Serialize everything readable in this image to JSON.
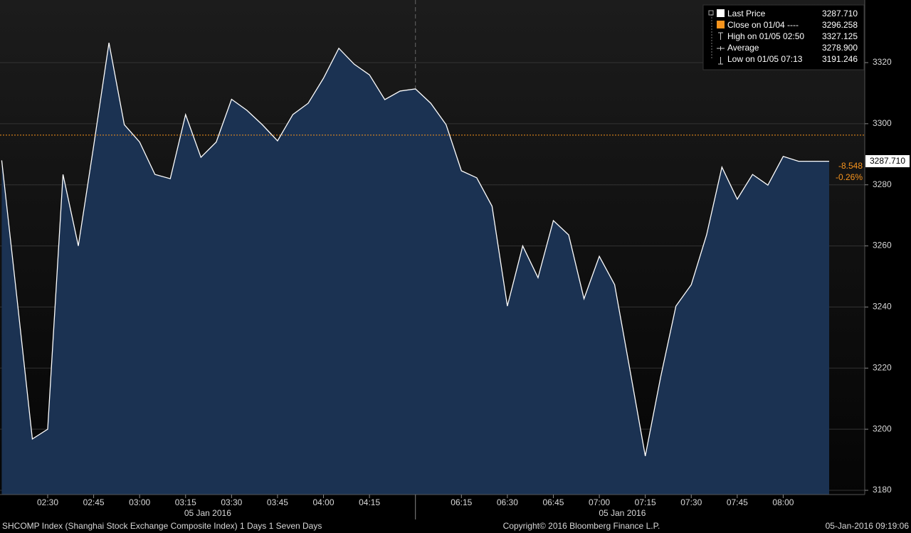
{
  "chart_data": {
    "type": "area",
    "categories": [
      null,
      null,
      null,
      "02:30",
      null,
      null,
      "02:45",
      null,
      null,
      "03:00",
      null,
      null,
      "03:15",
      null,
      null,
      "03:30",
      null,
      null,
      "03:45",
      null,
      null,
      "04:00",
      null,
      null,
      "04:15",
      null,
      null,
      null,
      null,
      null,
      "06:15",
      null,
      null,
      "06:30",
      null,
      null,
      "06:45",
      null,
      null,
      "07:00",
      null,
      null,
      "07:15",
      null,
      null,
      "07:30",
      null,
      null,
      "07:45",
      null,
      null,
      "08:00",
      null,
      null,
      null
    ],
    "series": [
      {
        "name": "Last Price",
        "color": "#ffffff",
        "fill": "#1b3252",
        "values": [
          3288,
          3242.7,
          3196.8,
          3200,
          3283.4,
          3260,
          3292.7,
          3326.5,
          3299.7,
          3294,
          3283.4,
          3282,
          3303,
          3289,
          3294,
          3308,
          3304.4,
          3299.7,
          3294.4,
          3303,
          3306.7,
          3314.9,
          3324.7,
          3319.5,
          3316,
          3307.9,
          3310.7,
          3311.4,
          3306.7,
          3299.7,
          3284.6,
          3282.3,
          3273,
          3240.3,
          3260,
          3249.6,
          3268.3,
          3263.6,
          3242.7,
          3256.6,
          3247.3,
          3219.4,
          3191.2,
          3217,
          3240.3,
          3247.3,
          3263.6,
          3285.8,
          3275.3,
          3283.4,
          3279.9,
          3289.3,
          3287.71,
          3287.71,
          3287.71
        ]
      }
    ],
    "close": 3296.258,
    "close_color": "#f7941d",
    "ylim": [
      3178.6,
      3340.5
    ],
    "yticks": [
      3180,
      3200,
      3220,
      3240,
      3260,
      3280,
      3300,
      3320
    ],
    "grid": true,
    "dates": [
      "05 Jan 2016",
      "05 Jan 2016"
    ],
    "last_price": {
      "value": 3287.71,
      "label": "3287.710"
    },
    "change": "-8.548",
    "change_pct": "-0.26%",
    "legend": [
      {
        "name": "Last Price",
        "value": "3287.710"
      },
      {
        "name": "Close on 01/04 ----",
        "value": "3296.258"
      },
      {
        "name": "High on 01/05 02:50",
        "value": "3327.125"
      },
      {
        "name": "Average",
        "value": "3278.900"
      },
      {
        "name": "Low on 01/05 07:13",
        "value": "3191.246"
      }
    ],
    "footer": {
      "left": "SHCOMP Index (Shanghai Stock Exchange Composite Index) 1 Days 1 Seven Days",
      "center": "Copyright© 2016 Bloomberg Finance L.P.",
      "right": "05-Jan-2016 09:19:06"
    }
  }
}
